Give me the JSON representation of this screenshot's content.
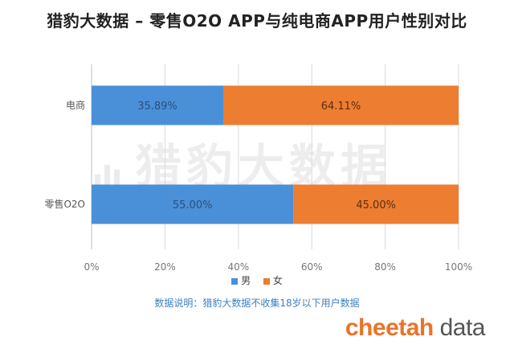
{
  "page": {
    "title": "猎豹大数据 – 零售O2O APP与纯电商APP用户性别对比",
    "note": "数据说明：猎豹大数据不收集18岁以下用户数据",
    "brand_part1": "cheetah",
    "brand_part2": " data",
    "watermark": "猎豹大数据"
  },
  "colors": {
    "male": "#4a90d9",
    "female": "#ed7d31",
    "axis": "#bfbfbf",
    "grid": "#d9d9d9"
  },
  "chart_data": {
    "type": "bar",
    "orientation": "horizontal",
    "stacked": true,
    "percent": true,
    "title": "猎豹大数据 – 零售O2O APP与纯电商APP用户性别对比",
    "categories": [
      "电商",
      "零售O2O"
    ],
    "series": [
      {
        "name": "男",
        "values": [
          35.89,
          55.0
        ],
        "labels": [
          "35.89%",
          "55.00%"
        ]
      },
      {
        "name": "女",
        "values": [
          64.11,
          45.0
        ],
        "labels": [
          "64.11%",
          "45.00%"
        ]
      }
    ],
    "xlim": [
      0,
      100
    ],
    "xticks": [
      "0%",
      "20%",
      "40%",
      "60%",
      "80%",
      "100%"
    ],
    "grid": true,
    "legend": "bottom"
  }
}
